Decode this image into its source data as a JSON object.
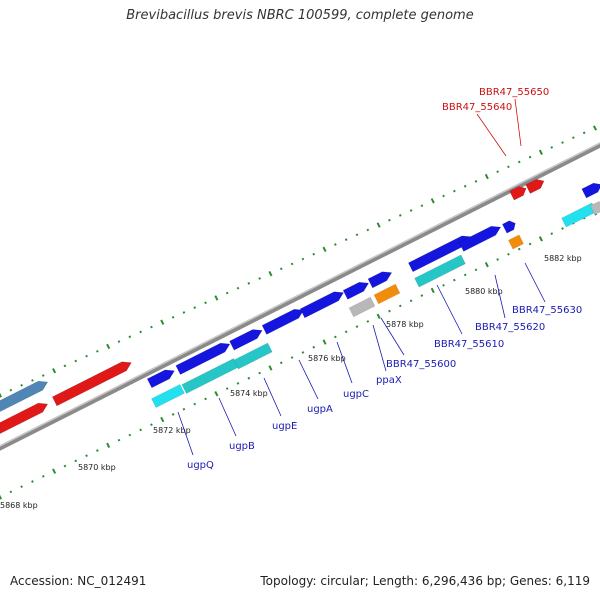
{
  "title": "Brevibacillus brevis NBRC 100599, complete genome",
  "footer": {
    "accession": "Accession: NC_012491",
    "stats": "Topology: circular; Length: 6,296,436 bp; Genes: 6,119"
  },
  "colors": {
    "backbone": "#8a8a8a",
    "dots": "#2e8b2e",
    "cds_blue": "#1515e0",
    "cds_red": "#e01818",
    "cds_steelblue": "#4f86b6",
    "cyan": "#22e0ee",
    "teal": "#26c6c6",
    "grey": "#b8b8b8",
    "orange": "#f28c0c",
    "label_blue": "#1a1ab4",
    "label_red": "#cc1111"
  },
  "tick_labels": [
    "5868 kbp",
    "5870 kbp",
    "5872 kbp",
    "5874 kbp",
    "5876 kbp",
    "5878 kbp",
    "5880 kbp",
    "5882 kbp"
  ],
  "gene_labels": [
    "ugpQ",
    "ugpB",
    "ugpE",
    "ugpA",
    "ugpC",
    "ppaX",
    "BBR47_55600",
    "BBR47_55610",
    "BBR47_55620",
    "BBR47_55630"
  ],
  "highlight_labels": [
    "BBR47_55640",
    "BBR47_55650"
  ]
}
